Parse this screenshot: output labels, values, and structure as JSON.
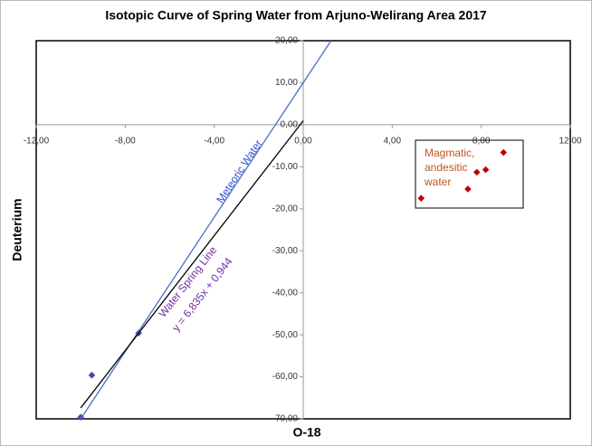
{
  "chart_data": {
    "type": "scatter",
    "title": "Isotopic Curve of Spring Water from Arjuno-Welirang Area 2017",
    "x_label": "O-18",
    "y_label": "Deuterium",
    "xlim": [
      -12,
      12
    ],
    "ylim": [
      -70,
      20
    ],
    "xticks": [
      {
        "value": -12,
        "label": "-12,00"
      },
      {
        "value": -8,
        "label": "-8,00"
      },
      {
        "value": -4,
        "label": "-4,00"
      },
      {
        "value": 0,
        "label": "0,00"
      },
      {
        "value": 4,
        "label": "4,00"
      },
      {
        "value": 8,
        "label": "8,00"
      },
      {
        "value": 12,
        "label": "12,00"
      }
    ],
    "yticks": [
      {
        "value": 20,
        "label": "20,00"
      },
      {
        "value": 10,
        "label": "10,00"
      },
      {
        "value": 0,
        "label": "0,00"
      },
      {
        "value": -10,
        "label": "-10,00"
      },
      {
        "value": -20,
        "label": "-20,00"
      },
      {
        "value": -30,
        "label": "-30,00"
      },
      {
        "value": -40,
        "label": "-40,00"
      },
      {
        "value": -50,
        "label": "-50,00"
      },
      {
        "value": -60,
        "label": "-60,00"
      },
      {
        "value": -70,
        "label": "-70,00"
      }
    ],
    "series": [
      {
        "mode": "markers",
        "color": "#4b45a8",
        "x": [
          -10.0,
          -9.5,
          -7.4
        ],
        "values": [
          -69.6,
          -59.6,
          -49.6
        ]
      },
      {
        "mode": "markers",
        "color": "#c00000",
        "x": [
          5.3,
          7.4,
          7.8,
          8.2,
          9.0
        ],
        "values": [
          -17.5,
          -15.3,
          -11.3,
          -10.7,
          -6.6
        ]
      },
      {
        "mode": "line",
        "name": "Meteoric Water",
        "color": "#4472c4",
        "text_color": "#2f4fd0",
        "x": [
          -10.0,
          1.25
        ],
        "values": [
          -70,
          20
        ]
      },
      {
        "mode": "line",
        "name": "Water Spring Line",
        "color": "#000000",
        "text_color": "#7030a0",
        "x": [
          -10.0,
          0
        ],
        "values": [
          -67.4,
          0.944
        ]
      }
    ],
    "annotations": [
      {
        "text": "y = 6,835x + 0,944",
        "color": "#7030a0"
      },
      {
        "lines": [
          "Magmatic,",
          "andesitic",
          "water"
        ],
        "color": "#c0561a"
      }
    ]
  }
}
